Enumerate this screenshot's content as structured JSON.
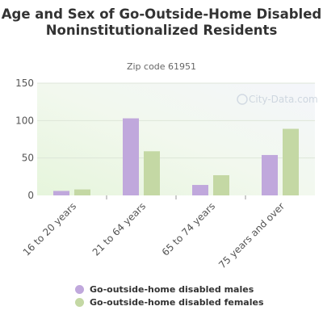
{
  "chart_data": {
    "type": "bar",
    "title": "Age and Sex of Go-Outside-Home Disabled Noninstitutionalized Residents",
    "subtitle": "Zip code 61951",
    "categories": [
      "16 to 20 years",
      "21 to 64 years",
      "65 to 74 years",
      "75 years and over"
    ],
    "series": [
      {
        "name": "Go-outside-home disabled males",
        "values": [
          6,
          103,
          14,
          54
        ],
        "color": "#c0a8dc"
      },
      {
        "name": "Go-outside-home disabled females",
        "values": [
          8,
          59,
          27,
          89
        ],
        "color": "#c4d8a4"
      }
    ],
    "yticks": [
      0,
      50,
      100,
      150
    ],
    "ylim": [
      0,
      150
    ],
    "grid": true,
    "legend_position": "bottom",
    "watermark": "City-Data.com"
  }
}
